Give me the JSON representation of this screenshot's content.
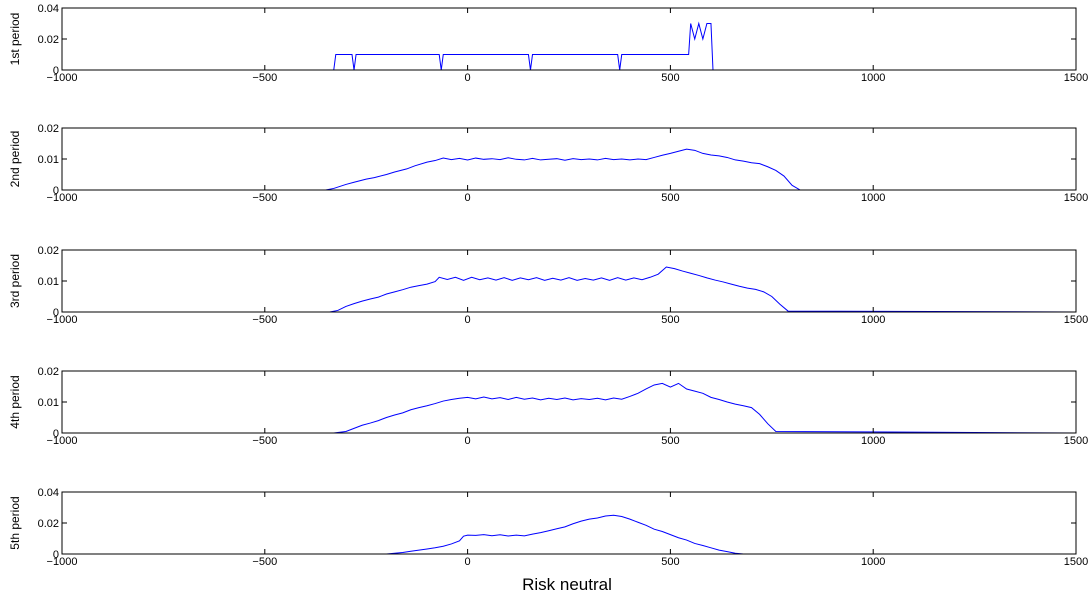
{
  "chart_data": [
    {
      "type": "line",
      "ylabel": "1st period",
      "xlim": [
        -1000,
        1500
      ],
      "ylim": [
        0,
        0.04
      ],
      "xticks": [
        -1000,
        -500,
        0,
        500,
        1000,
        1500
      ],
      "xtick_labels": [
        "−1000",
        "−500",
        "0",
        "500",
        "1000",
        "1500"
      ],
      "yticks": [
        0,
        0.02,
        0.04
      ],
      "ytick_labels": [
        "0",
        "0.02",
        "0.04"
      ],
      "color": "#0000ff",
      "x": [
        -1000,
        -330,
        -325,
        -285,
        -280,
        -275,
        -70,
        -65,
        -60,
        150,
        155,
        160,
        370,
        375,
        380,
        545,
        550,
        560,
        570,
        580,
        590,
        600,
        605,
        1500
      ],
      "y": [
        0,
        0,
        0.01,
        0.01,
        0,
        0.01,
        0.01,
        0,
        0.01,
        0.01,
        0,
        0.01,
        0.01,
        0,
        0.01,
        0.01,
        0.03,
        0.02,
        0.03,
        0.02,
        0.03,
        0.03,
        0,
        0
      ]
    },
    {
      "type": "line",
      "ylabel": "2nd period",
      "xlim": [
        -1000,
        1500
      ],
      "ylim": [
        0,
        0.02
      ],
      "xticks": [
        -1000,
        -500,
        0,
        500,
        1000,
        1500
      ],
      "xtick_labels": [
        "−1000",
        "−500",
        "0",
        "500",
        "1000",
        "1500"
      ],
      "yticks": [
        0,
        0.01,
        0.02
      ],
      "ytick_labels": [
        "0",
        "0.01",
        "0.02"
      ],
      "color": "#0000ff",
      "x": [
        -1000,
        -350,
        -330,
        -300,
        -280,
        -250,
        -230,
        -200,
        -180,
        -150,
        -130,
        -100,
        -80,
        -60,
        -40,
        -20,
        0,
        20,
        40,
        60,
        80,
        100,
        120,
        140,
        160,
        180,
        200,
        220,
        240,
        260,
        280,
        300,
        320,
        340,
        360,
        380,
        400,
        420,
        440,
        460,
        480,
        500,
        520,
        540,
        560,
        580,
        600,
        620,
        640,
        660,
        680,
        700,
        720,
        740,
        760,
        780,
        800,
        820,
        1500
      ],
      "y": [
        0,
        0,
        0.0005,
        0.0018,
        0.0025,
        0.0035,
        0.004,
        0.005,
        0.0058,
        0.0068,
        0.0078,
        0.009,
        0.0095,
        0.0103,
        0.0098,
        0.0102,
        0.0097,
        0.0103,
        0.0099,
        0.0101,
        0.0098,
        0.0104,
        0.0099,
        0.0097,
        0.0102,
        0.0097,
        0.0099,
        0.0101,
        0.0096,
        0.0101,
        0.0098,
        0.01,
        0.0097,
        0.0102,
        0.0098,
        0.01,
        0.0097,
        0.01,
        0.0098,
        0.0105,
        0.0112,
        0.0118,
        0.0125,
        0.0132,
        0.0128,
        0.0118,
        0.0113,
        0.011,
        0.0105,
        0.0097,
        0.0093,
        0.0088,
        0.0085,
        0.0075,
        0.0063,
        0.0045,
        0.0015,
        0,
        0
      ]
    },
    {
      "type": "line",
      "ylabel": "3rd period",
      "xlim": [
        -1000,
        1500
      ],
      "ylim": [
        0,
        0.02
      ],
      "xticks": [
        -1000,
        -500,
        0,
        500,
        1000,
        1500
      ],
      "xtick_labels": [
        "−1000",
        "−500",
        "0",
        "500",
        "1000",
        "1500"
      ],
      "yticks": [
        0,
        0.01,
        0.02
      ],
      "ytick_labels": [
        "0",
        "0.01",
        "0.02"
      ],
      "color": "#0000ff",
      "x": [
        -1000,
        -340,
        -320,
        -300,
        -280,
        -260,
        -240,
        -220,
        -200,
        -180,
        -160,
        -140,
        -120,
        -100,
        -80,
        -70,
        -50,
        -30,
        -10,
        10,
        30,
        50,
        70,
        90,
        110,
        130,
        150,
        170,
        190,
        210,
        230,
        250,
        270,
        290,
        310,
        330,
        350,
        370,
        390,
        410,
        430,
        450,
        470,
        490,
        510,
        530,
        550,
        570,
        590,
        610,
        630,
        650,
        670,
        690,
        710,
        730,
        750,
        770,
        790,
        1500
      ],
      "y": [
        0,
        0,
        0.0005,
        0.0018,
        0.0027,
        0.0035,
        0.0042,
        0.0048,
        0.0058,
        0.0065,
        0.0072,
        0.008,
        0.0085,
        0.009,
        0.0098,
        0.0112,
        0.0105,
        0.0112,
        0.0102,
        0.0112,
        0.0104,
        0.011,
        0.0103,
        0.0111,
        0.0102,
        0.011,
        0.0104,
        0.0111,
        0.0102,
        0.0109,
        0.0103,
        0.0111,
        0.0102,
        0.0108,
        0.0103,
        0.011,
        0.0102,
        0.0111,
        0.0103,
        0.011,
        0.0104,
        0.0112,
        0.0122,
        0.0145,
        0.014,
        0.0132,
        0.0125,
        0.0118,
        0.011,
        0.0103,
        0.0097,
        0.009,
        0.0083,
        0.0077,
        0.0073,
        0.0065,
        0.005,
        0.0025,
        0.0003,
        0
      ]
    },
    {
      "type": "line",
      "ylabel": "4th period",
      "xlim": [
        -1000,
        1500
      ],
      "ylim": [
        0,
        0.02
      ],
      "xticks": [
        -1000,
        -500,
        0,
        500,
        1000,
        1500
      ],
      "xtick_labels": [
        "−1000",
        "−500",
        "0",
        "500",
        "1000",
        "1500"
      ],
      "yticks": [
        0,
        0.01,
        0.02
      ],
      "ytick_labels": [
        "0",
        "0.01",
        "0.02"
      ],
      "color": "#0000ff",
      "x": [
        -1000,
        -330,
        -300,
        -280,
        -260,
        -240,
        -220,
        -200,
        -180,
        -160,
        -140,
        -120,
        -100,
        -80,
        -60,
        -40,
        -20,
        0,
        20,
        40,
        60,
        80,
        100,
        120,
        140,
        160,
        180,
        200,
        220,
        240,
        260,
        280,
        300,
        320,
        340,
        360,
        380,
        400,
        420,
        440,
        460,
        480,
        500,
        520,
        540,
        560,
        580,
        600,
        620,
        640,
        660,
        680,
        700,
        720,
        740,
        760,
        1500
      ],
      "y": [
        0,
        0,
        0.0005,
        0.0015,
        0.0025,
        0.0032,
        0.004,
        0.005,
        0.0058,
        0.0065,
        0.0075,
        0.0082,
        0.0088,
        0.0095,
        0.0103,
        0.0108,
        0.0112,
        0.0115,
        0.011,
        0.0116,
        0.011,
        0.0114,
        0.0108,
        0.0115,
        0.0109,
        0.0113,
        0.0107,
        0.0112,
        0.0108,
        0.0113,
        0.0107,
        0.0111,
        0.0108,
        0.0112,
        0.0107,
        0.0113,
        0.0109,
        0.0118,
        0.0128,
        0.0142,
        0.0155,
        0.016,
        0.0148,
        0.016,
        0.0142,
        0.0135,
        0.0128,
        0.0115,
        0.0108,
        0.01,
        0.0093,
        0.0088,
        0.0082,
        0.006,
        0.003,
        0.0005,
        0
      ]
    },
    {
      "type": "line",
      "ylabel": "5th period",
      "xlim": [
        -1000,
        1500
      ],
      "ylim": [
        0,
        0.04
      ],
      "xticks": [
        -1000,
        -500,
        0,
        500,
        1000,
        1500
      ],
      "xtick_labels": [
        "−1000",
        "−500",
        "0",
        "500",
        "1000",
        "1500"
      ],
      "yticks": [
        0,
        0.02,
        0.04
      ],
      "ytick_labels": [
        "0",
        "0.02",
        "0.04"
      ],
      "color": "#0000ff",
      "x": [
        -1000,
        -200,
        -180,
        -160,
        -140,
        -120,
        -100,
        -80,
        -60,
        -40,
        -20,
        -10,
        0,
        20,
        40,
        60,
        80,
        100,
        120,
        140,
        160,
        180,
        200,
        220,
        240,
        260,
        280,
        300,
        320,
        340,
        360,
        380,
        400,
        420,
        440,
        460,
        480,
        500,
        520,
        540,
        560,
        580,
        600,
        620,
        640,
        660,
        680,
        1500
      ],
      "y": [
        0,
        0,
        0.0005,
        0.001,
        0.0018,
        0.0025,
        0.0032,
        0.004,
        0.005,
        0.0065,
        0.0085,
        0.0115,
        0.0122,
        0.012,
        0.0125,
        0.0118,
        0.0124,
        0.0116,
        0.0122,
        0.0117,
        0.0128,
        0.0138,
        0.015,
        0.0163,
        0.0175,
        0.0195,
        0.0212,
        0.0225,
        0.0232,
        0.0245,
        0.025,
        0.0242,
        0.0225,
        0.0205,
        0.0185,
        0.016,
        0.0145,
        0.0125,
        0.0105,
        0.009,
        0.0068,
        0.0055,
        0.004,
        0.0025,
        0.0015,
        0.0005,
        0,
        0
      ]
    }
  ],
  "xlabel": "Risk neutral"
}
